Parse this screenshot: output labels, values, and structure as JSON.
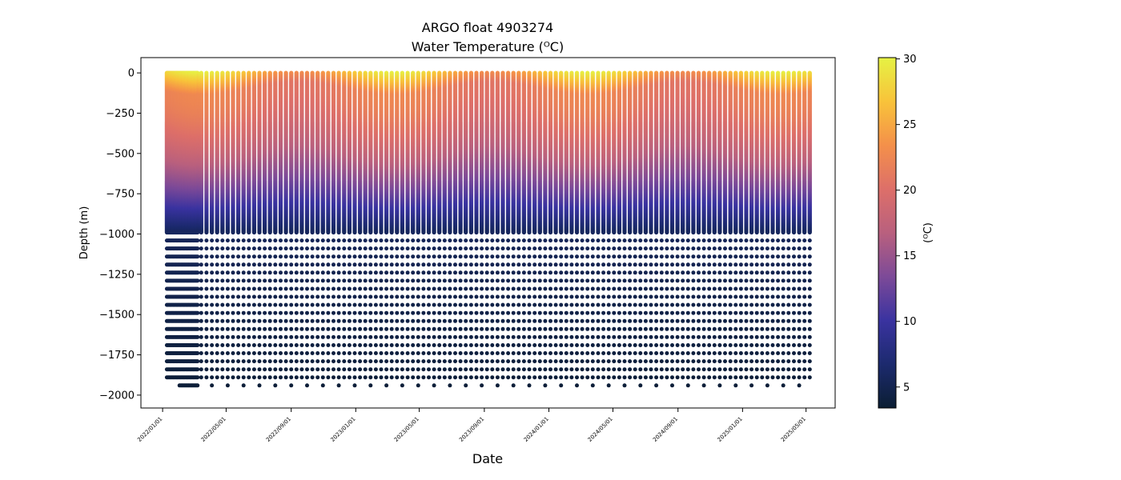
{
  "chart_data": {
    "type": "scatter",
    "title": "ARGO float 4903274",
    "subtitle": "Water Temperature (ᴼC)",
    "xlabel": "Date",
    "ylabel": "Depth (m)",
    "colorbar_label": "(ᴼC)",
    "x_tick_labels": [
      "2022/01/01",
      "2022/05/01",
      "2022/09/01",
      "2023/01/01",
      "2023/05/01",
      "2023/09/01",
      "2024/01/01",
      "2024/05/01",
      "2024/09/01",
      "2025/01/01",
      "2025/05/01"
    ],
    "x_range": [
      "2021/11/21",
      "2025/06/25"
    ],
    "y_ticks": [
      0,
      -250,
      -500,
      -750,
      -1000,
      -1250,
      -1500,
      -1750,
      -2000
    ],
    "y_tick_labels": [
      "0",
      "−250",
      "−500",
      "−750",
      "−1000",
      "−1250",
      "−1500",
      "−1750",
      "−2000"
    ],
    "ylim": [
      -2080,
      95
    ],
    "colorbar_ticks": [
      5,
      10,
      15,
      20,
      25,
      30
    ],
    "colorbar_range": [
      3.4,
      30.1
    ],
    "colormap": [
      "#0b1e33",
      "#1c2a6e",
      "#3a33a0",
      "#7d4a98",
      "#b9607e",
      "#dd6f69",
      "#f4904a",
      "#f8c33a",
      "#e6f244"
    ],
    "grid": false,
    "profile_start_date": "2022/01/01",
    "profile_end_date": "2025/05/10",
    "profile_interval_days": 10,
    "dense_sampling_until": "2022/03/10",
    "deep_level_spacing_m": 50,
    "max_depth_m": -1975,
    "deep_temperature_c": 4.5,
    "surface_temperature_c": [
      23,
      30
    ],
    "temperature_1000m_c": 5.5
  }
}
